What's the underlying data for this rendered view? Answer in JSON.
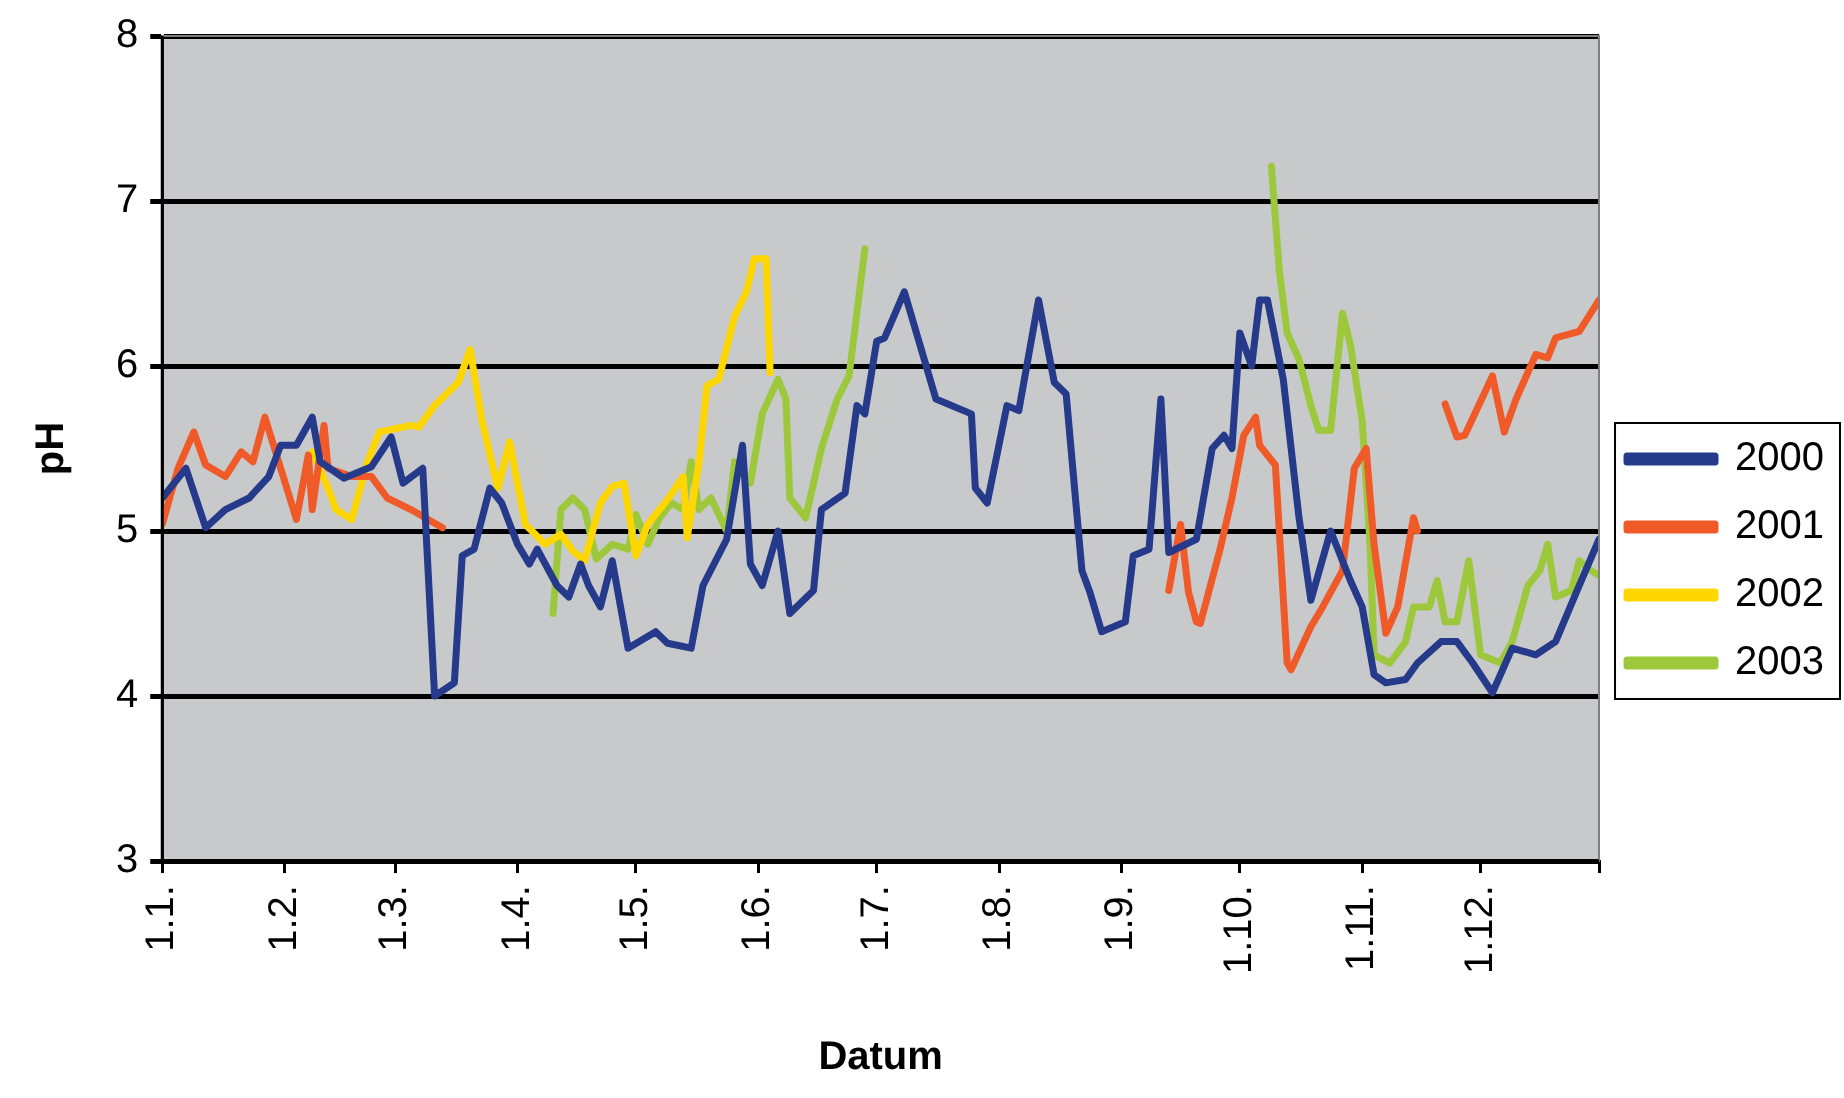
{
  "chart_data": {
    "type": "line",
    "xlabel": "Datum",
    "ylabel": "pH",
    "xlim": [
      "--01-01",
      "--12-31"
    ],
    "xticks": [
      {
        "value": "--01-01",
        "label": "1.1."
      },
      {
        "value": "--02-01",
        "label": "1.2."
      },
      {
        "value": "--03-01",
        "label": "1.3."
      },
      {
        "value": "--04-01",
        "label": "1.4."
      },
      {
        "value": "--05-01",
        "label": "1.5."
      },
      {
        "value": "--06-01",
        "label": "1.6."
      },
      {
        "value": "--07-01",
        "label": "1.7."
      },
      {
        "value": "--08-01",
        "label": "1.8."
      },
      {
        "value": "--09-01",
        "label": "1.9."
      },
      {
        "value": "--10-01",
        "label": "1.10."
      },
      {
        "value": "--11-01",
        "label": "1.11."
      },
      {
        "value": "--12-01",
        "label": "1.12."
      },
      {
        "value": "--12-31",
        "label": null
      }
    ],
    "ylim": [
      3,
      8
    ],
    "yticks": [
      3,
      4,
      5,
      6,
      7,
      8
    ],
    "grid": "y",
    "legend": "right",
    "marker": "none",
    "line_style": "solid",
    "series": [
      {
        "name": "2000",
        "color": "#253a8a",
        "x": [
          "--01-01",
          "--01-07",
          "--01-12",
          "--01-17",
          "--01-23",
          "--01-28",
          "--01-31",
          "--02-04",
          "--02-08",
          "--02-10",
          "--02-16",
          "--02-23",
          "--02-28",
          "--03-03",
          "--03-08",
          "--03-11",
          "--03-16",
          "--03-18",
          "--03-21",
          "--03-25",
          "--03-28",
          "--04-01",
          "--04-04",
          "--04-06",
          "--04-11",
          "--04-14",
          "--04-17",
          "--04-19",
          "--04-22",
          "--04-25",
          "--04-29",
          "--05-06",
          "--05-09",
          "--05-15",
          "--05-18",
          "--05-24",
          "--05-28",
          "--05-30",
          "--06-02",
          "--06-06",
          "--06-09",
          "--06-15",
          "--06-17",
          "--06-23",
          "--06-26",
          "--06-28",
          "--07-01",
          "--07-03",
          "--07-08",
          "--07-16",
          "--07-25",
          "--07-26",
          "--07-29",
          "--08-03",
          "--08-06",
          "--08-11",
          "--08-15",
          "--08-18",
          "--08-22",
          "--08-24",
          "--08-27",
          "--09-02",
          "--09-04",
          "--09-08",
          "--09-11",
          "--09-13",
          "--09-20",
          "--09-24",
          "--09-27",
          "--09-29",
          "--10-01",
          "--10-04",
          "--10-06",
          "--10-08",
          "--10-12",
          "--10-16",
          "--10-19",
          "--10-24",
          "--10-29",
          "--11-01",
          "--11-04",
          "--11-07",
          "--11-12",
          "--11-15",
          "--11-21",
          "--11-25",
          "--11-29",
          "--12-04",
          "--12-09",
          "--12-15",
          "--12-20",
          "--12-26",
          "--12-31"
        ],
        "values": [
          5.2,
          5.38,
          5.02,
          5.13,
          5.2,
          5.33,
          5.52,
          5.52,
          5.69,
          5.42,
          5.32,
          5.39,
          5.57,
          5.29,
          5.38,
          4.0,
          4.08,
          4.85,
          4.89,
          5.26,
          5.17,
          4.92,
          4.8,
          4.89,
          4.67,
          4.6,
          4.8,
          4.67,
          4.54,
          4.82,
          4.29,
          4.39,
          4.32,
          4.29,
          4.67,
          4.95,
          5.52,
          4.8,
          4.67,
          5.0,
          4.5,
          4.64,
          5.13,
          5.23,
          5.76,
          5.71,
          6.15,
          6.17,
          6.45,
          5.8,
          5.71,
          5.26,
          5.17,
          5.76,
          5.73,
          6.4,
          5.9,
          5.83,
          4.76,
          4.63,
          4.39,
          4.45,
          4.85,
          4.89,
          5.8,
          4.87,
          4.95,
          5.5,
          5.58,
          5.5,
          6.2,
          6.0,
          6.4,
          6.4,
          5.92,
          5.08,
          4.58,
          5.0,
          4.7,
          4.54,
          4.13,
          4.08,
          4.1,
          4.2,
          4.33,
          4.33,
          4.2,
          4.02,
          4.29,
          4.25,
          4.33,
          4.67,
          4.95
        ]
      },
      {
        "name": "2001",
        "color": "#f05a28",
        "x": [
          "--01-01",
          "--01-05",
          "--01-09",
          "--01-12",
          "--01-17",
          "--01-21",
          "--01-24",
          "--01-27",
          "--01-31",
          "--02-04",
          "--02-07",
          "--02-08",
          "--02-11",
          "--02-12",
          "--02-18",
          "--02-23",
          "--02-27",
          "--03-05",
          "--03-13",
          "--06-01",
          "--09-13",
          "--09-16",
          "--09-18",
          "--09-20",
          "--09-21",
          "--09-26",
          "--09-29",
          "--10-02",
          "--10-05",
          "--10-06",
          "--10-10",
          "--10-13",
          "--10-14",
          "--10-19",
          "--10-22",
          "--10-27",
          "--10-29",
          "--10-30",
          "--11-02",
          "--11-04",
          "--11-07",
          "--11-10",
          "--11-14",
          "--11-15",
          "--11-18",
          "--11-22",
          "--11-25",
          "--11-27",
          "--12-04",
          "--12-07",
          "--12-10",
          "--12-15",
          "--12-18",
          "--12-20",
          "--12-26",
          "--12-31"
        ],
        "values": [
          5.04,
          5.38,
          5.6,
          5.4,
          5.33,
          5.48,
          5.42,
          5.69,
          5.38,
          5.07,
          5.46,
          5.13,
          5.64,
          5.38,
          5.33,
          5.33,
          5.2,
          5.13,
          5.02,
          null,
          4.64,
          5.04,
          4.63,
          4.45,
          4.44,
          4.89,
          5.2,
          5.58,
          5.69,
          5.52,
          5.4,
          4.2,
          4.16,
          4.42,
          4.54,
          4.76,
          5.17,
          5.38,
          5.5,
          4.92,
          4.38,
          4.54,
          5.08,
          5.0,
          null,
          5.77,
          5.57,
          5.58,
          5.94,
          5.6,
          5.8,
          6.07,
          6.05,
          6.17,
          6.21,
          6.4
        ]
      },
      {
        "name": "2002",
        "color": "#ffd700",
        "x": [
          "--02-08",
          "--02-12",
          "--02-14",
          "--02-18",
          "--02-22",
          "--02-25",
          "--03-05",
          "--03-07",
          "--03-11",
          "--03-14",
          "--03-17",
          "--03-20",
          "--03-23",
          "--03-27",
          "--03-30",
          "--04-03",
          "--04-08",
          "--04-12",
          "--04-15",
          "--04-18",
          "--04-22",
          "--04-25",
          "--04-28",
          "--05-01",
          "--05-04",
          "--05-09",
          "--05-13",
          "--05-14",
          "--05-17",
          "--05-19",
          "--05-22",
          "--05-26",
          "--05-29",
          "--05-31",
          "--06-03",
          "--06-04"
        ],
        "values": [
          5.48,
          5.26,
          5.13,
          5.07,
          5.42,
          5.6,
          5.64,
          5.63,
          5.76,
          5.83,
          5.9,
          6.1,
          5.67,
          5.26,
          5.54,
          5.04,
          4.92,
          4.98,
          4.88,
          4.82,
          5.17,
          5.27,
          5.29,
          4.85,
          5.04,
          5.19,
          5.33,
          4.96,
          5.42,
          5.88,
          5.92,
          6.3,
          6.45,
          6.65,
          6.65,
          5.96
        ]
      },
      {
        "name": "2003",
        "color": "#9dc83c",
        "x": [
          "--04-10",
          "--04-12",
          "--04-15",
          "--04-18",
          "--04-21",
          "--04-25",
          "--04-29",
          "--05-01",
          "--05-04",
          "--05-07",
          "--05-10",
          "--05-13",
          "--05-15",
          "--05-17",
          "--05-20",
          "--05-24",
          "--05-26",
          "--05-30",
          "--06-02",
          "--06-06",
          "--06-08",
          "--06-09",
          "--06-13",
          "--06-17",
          "--06-21",
          "--06-24",
          "--06-28",
          "--07-20",
          "--10-09",
          "--10-11",
          "--10-13",
          "--10-16",
          "--10-19",
          "--10-21",
          "--10-24",
          "--10-27",
          "--10-29",
          "--11-01",
          "--11-03",
          "--11-04",
          "--11-08",
          "--11-12",
          "--11-14",
          "--11-18",
          "--11-20",
          "--11-22",
          "--11-25",
          "--11-28",
          "--12-01",
          "--12-06",
          "--12-09",
          "--12-13",
          "--12-16",
          "--12-18",
          "--12-20",
          "--12-24",
          "--12-26",
          "--12-29",
          "--12-31"
        ],
        "values": [
          4.5,
          5.13,
          5.2,
          5.13,
          4.83,
          4.92,
          4.89,
          5.1,
          4.92,
          5.08,
          5.17,
          5.13,
          5.42,
          5.13,
          5.2,
          5.0,
          5.42,
          5.29,
          5.71,
          5.92,
          5.8,
          5.2,
          5.08,
          5.5,
          5.8,
          5.94,
          6.71,
          null,
          7.21,
          6.58,
          6.2,
          6.04,
          5.76,
          5.61,
          5.61,
          6.32,
          6.13,
          5.67,
          4.92,
          4.25,
          4.2,
          4.33,
          4.54,
          4.54,
          4.7,
          4.45,
          4.45,
          4.82,
          4.25,
          4.2,
          4.33,
          4.67,
          4.76,
          4.92,
          4.6,
          4.64,
          4.82,
          4.76,
          4.73
        ]
      }
    ]
  }
}
